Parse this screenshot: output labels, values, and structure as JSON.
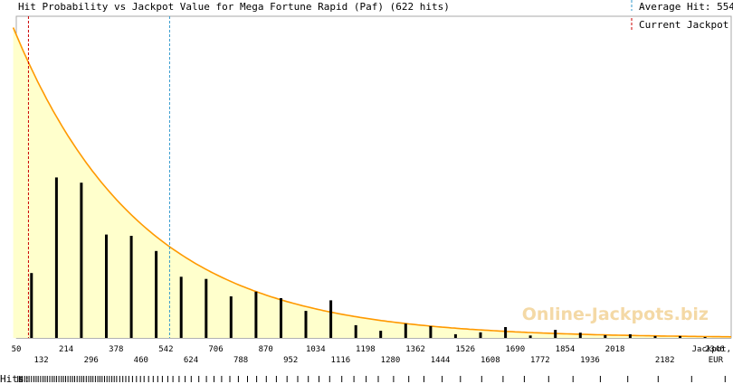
{
  "chart_data": {
    "type": "bar",
    "title": "Hit Probability vs Jackpot Value for Mega Fortune Rapid (Paf) (622 hits)",
    "legend": [
      {
        "label_prefix": "Average Hit: ",
        "value": "554",
        "style": "dashed",
        "color": "#3399cc"
      },
      {
        "label": "Current Jackpot",
        "style": "dashed",
        "color": "#cc0000"
      }
    ],
    "legend_position": "top-right",
    "watermark": "Online-Jackpots.biz",
    "xlabel": "Jackpot, EUR",
    "xlabel_line1": "Jackpot,",
    "xlabel_line2": "EUR",
    "xlim": [
      50,
      2400
    ],
    "ylim": [
      0,
      1
    ],
    "x_ticks_upper": [
      50,
      214,
      378,
      542,
      706,
      870,
      1034,
      1198,
      1362,
      1526,
      1690,
      1854,
      2018,
      2346
    ],
    "x_ticks_lower": [
      132,
      296,
      460,
      624,
      788,
      952,
      1116,
      1280,
      1444,
      1608,
      1772,
      1936,
      2182
    ],
    "average_hit": 554,
    "current_jackpot": 90,
    "bars": {
      "x": [
        100,
        182,
        264,
        346,
        428,
        510,
        592,
        674,
        756,
        838,
        920,
        1002,
        1084,
        1166,
        1248,
        1330,
        1412,
        1494,
        1576,
        1658,
        1740,
        1822,
        1904,
        1986,
        2068,
        2150,
        2232,
        2314
      ],
      "values": [
        0.209,
        0.517,
        0.5,
        0.333,
        0.329,
        0.28,
        0.197,
        0.19,
        0.134,
        0.149,
        0.128,
        0.087,
        0.121,
        0.041,
        0.023,
        0.046,
        0.038,
        0.012,
        0.018,
        0.035,
        0.008,
        0.026,
        0.017,
        0.009,
        0.012,
        0.006,
        0.006,
        0.003
      ]
    },
    "curve": {
      "start": 1.0,
      "decay_per_100": 0.212,
      "color": "#ff9900",
      "fill": "#ffffcc"
    },
    "hits_label": "Hits:",
    "hits_strip": {
      "x": [
        55,
        60,
        65,
        70,
        78,
        85,
        92,
        100,
        108,
        115,
        122,
        130,
        138,
        145,
        152,
        160,
        168,
        175,
        182,
        190,
        198,
        205,
        212,
        220,
        228,
        235,
        242,
        250,
        258,
        265,
        272,
        280,
        288,
        295,
        302,
        310,
        318,
        325,
        332,
        340,
        348,
        356,
        364,
        372,
        380,
        390,
        400,
        410,
        420,
        432,
        445,
        458,
        470,
        485,
        500,
        515,
        530,
        548,
        565,
        585,
        605,
        625,
        650,
        675,
        700,
        725,
        752,
        780,
        810,
        840,
        872,
        905,
        940,
        975,
        1010,
        1045,
        1080,
        1120,
        1160,
        1200,
        1240,
        1290,
        1340,
        1390,
        1450,
        1510,
        1580,
        1650,
        1720,
        1800,
        1880,
        1970,
        2060,
        2160,
        2270,
        2380
      ]
    }
  }
}
